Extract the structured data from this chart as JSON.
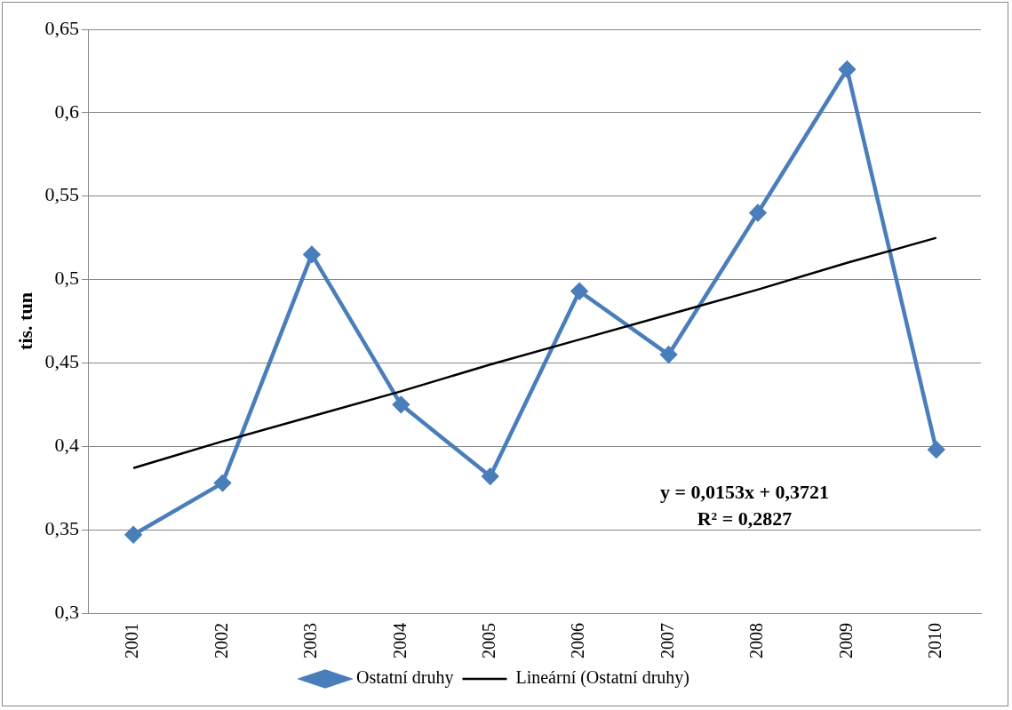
{
  "chart_data": {
    "type": "line",
    "ylabel": "tis. tun",
    "categories": [
      "2001",
      "2002",
      "2003",
      "2004",
      "2005",
      "2006",
      "2007",
      "2008",
      "2009",
      "2010"
    ],
    "series": [
      {
        "name": "Ostatní druhy",
        "color": "#4a7ebb",
        "marker": "diamond",
        "values": [
          0.347,
          0.378,
          0.515,
          0.425,
          0.382,
          0.493,
          0.455,
          0.54,
          0.626,
          0.398
        ]
      },
      {
        "name": "Lineární (Ostatní druhy)",
        "type": "line",
        "color": "#000000",
        "marker": "none",
        "values": [
          0.387,
          0.403,
          0.418,
          0.433,
          0.449,
          0.464,
          0.479,
          0.494,
          0.51,
          0.525
        ]
      }
    ],
    "ylim": [
      0.3,
      0.65
    ],
    "yticks": [
      {
        "value": 0.3,
        "label": "0,3"
      },
      {
        "value": 0.35,
        "label": "0,35"
      },
      {
        "value": 0.4,
        "label": "0,4"
      },
      {
        "value": 0.45,
        "label": "0,45"
      },
      {
        "value": 0.5,
        "label": "0,5"
      },
      {
        "value": 0.55,
        "label": "0,55"
      },
      {
        "value": 0.6,
        "label": "0,6"
      },
      {
        "value": 0.65,
        "label": "0,65"
      }
    ],
    "grid": "y",
    "legend": "bottom",
    "annotations": [
      "y = 0,0153x + 0,3721",
      "R² = 0,2827"
    ]
  }
}
